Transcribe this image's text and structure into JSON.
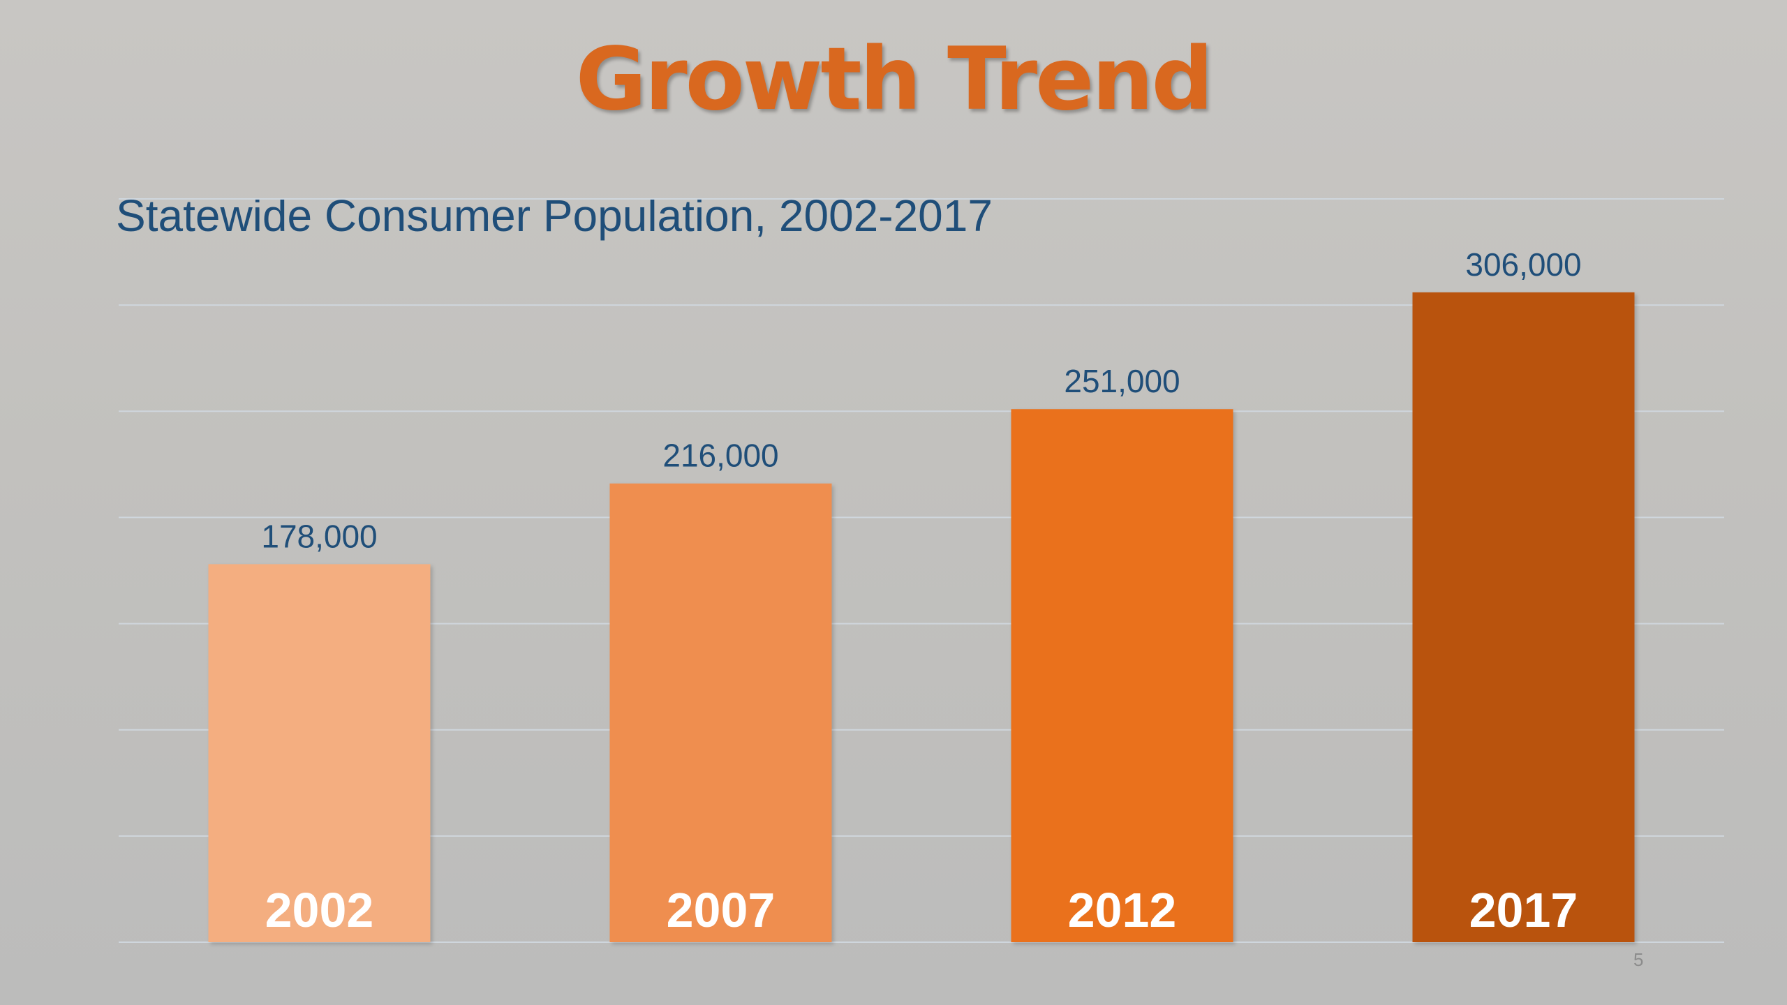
{
  "slide": {
    "title": "Growth Trend",
    "subtitle": "Statewide Consumer Population, 2002-2017",
    "page_number": "5"
  },
  "colors": {
    "title": "#d9681f",
    "subtitle": "#1f4e79",
    "value_labels": "#1f4e79",
    "category_labels": "#ffffff",
    "gridlines": "#cfd6dd",
    "bars": [
      "#f4ae80",
      "#ef8e4f",
      "#ea711c",
      "#b95310"
    ]
  },
  "chart_data": {
    "type": "bar",
    "title": "Statewide Consumer Population, 2002-2017",
    "xlabel": "",
    "ylabel": "",
    "categories": [
      "2002",
      "2007",
      "2012",
      "2017"
    ],
    "values": [
      178000,
      216000,
      251000,
      306000
    ],
    "value_labels": [
      "178,000",
      "216,000",
      "251,000",
      "306,000"
    ],
    "ylim": [
      0,
      350000
    ],
    "grid": true,
    "legend": "none",
    "category_labels_inside_bars": true
  }
}
